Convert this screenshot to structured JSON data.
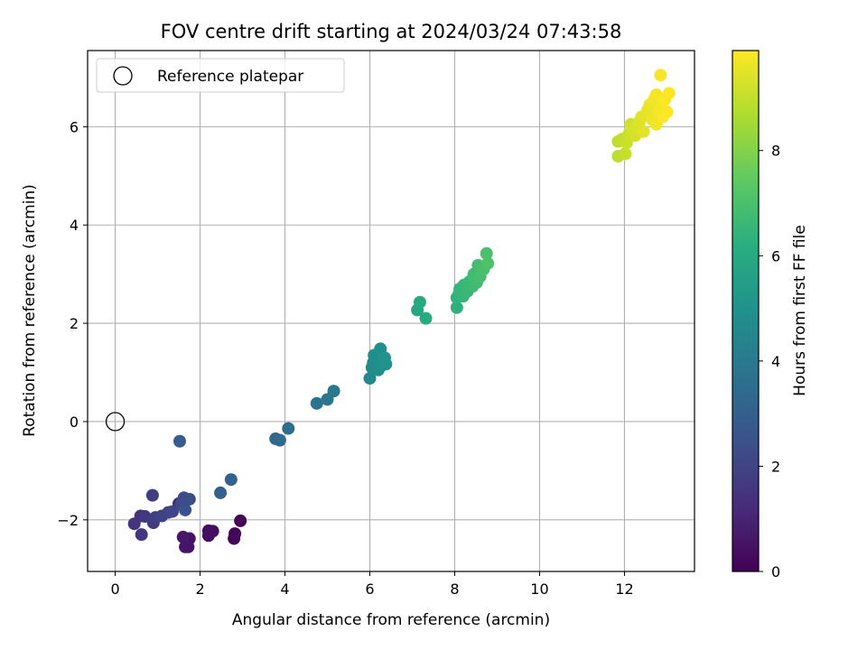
{
  "chart_data": {
    "type": "scatter",
    "title": "FOV centre drift starting at 2024/03/24 07:43:58",
    "xlabel": "Angular distance from reference (arcmin)",
    "ylabel": "Rotation from reference (arcmin)",
    "xlim": [
      -0.65,
      13.65
    ],
    "ylim": [
      -3.05,
      7.55
    ],
    "xticks": [
      0,
      2,
      4,
      6,
      8,
      10,
      12
    ],
    "yticks": [
      -2,
      0,
      2,
      4,
      6
    ],
    "grid": true,
    "legend": {
      "position": "top-left",
      "entries": [
        "Reference platepar"
      ]
    },
    "reference_point": {
      "x": 0,
      "y": 0,
      "label": "Reference platepar"
    },
    "colorbar": {
      "label": "Hours from first FF file",
      "colormap": "viridis",
      "range": [
        0,
        9.9
      ],
      "ticks": [
        0,
        2,
        4,
        6,
        8
      ]
    },
    "points": [
      {
        "x": 2.95,
        "y": -2.02,
        "h": 0.1
      },
      {
        "x": 2.8,
        "y": -2.38,
        "h": 0.15
      },
      {
        "x": 2.82,
        "y": -2.28,
        "h": 0.2
      },
      {
        "x": 2.3,
        "y": -2.23,
        "h": 0.3
      },
      {
        "x": 2.2,
        "y": -2.22,
        "h": 0.35
      },
      {
        "x": 2.2,
        "y": -2.32,
        "h": 0.4
      },
      {
        "x": 1.75,
        "y": -2.38,
        "h": 0.5
      },
      {
        "x": 1.72,
        "y": -2.55,
        "h": 0.55
      },
      {
        "x": 1.65,
        "y": -2.55,
        "h": 0.6
      },
      {
        "x": 1.6,
        "y": -2.35,
        "h": 0.65
      },
      {
        "x": 1.5,
        "y": -1.67,
        "h": 0.9
      },
      {
        "x": 0.6,
        "y": -1.92,
        "h": 1.4
      },
      {
        "x": 0.45,
        "y": -2.08,
        "h": 1.5
      },
      {
        "x": 0.62,
        "y": -2.3,
        "h": 1.55
      },
      {
        "x": 0.7,
        "y": -1.93,
        "h": 1.6
      },
      {
        "x": 0.9,
        "y": -2.06,
        "h": 1.7
      },
      {
        "x": 0.88,
        "y": -1.5,
        "h": 1.75
      },
      {
        "x": 0.95,
        "y": -1.95,
        "h": 1.85
      },
      {
        "x": 1.1,
        "y": -1.92,
        "h": 1.9
      },
      {
        "x": 1.25,
        "y": -1.85,
        "h": 2.0
      },
      {
        "x": 1.35,
        "y": -1.83,
        "h": 2.05
      },
      {
        "x": 1.55,
        "y": -1.67,
        "h": 2.2
      },
      {
        "x": 1.62,
        "y": -1.55,
        "h": 2.3
      },
      {
        "x": 1.75,
        "y": -1.58,
        "h": 2.35
      },
      {
        "x": 1.65,
        "y": -1.8,
        "h": 2.45
      },
      {
        "x": 1.52,
        "y": -0.4,
        "h": 2.9
      },
      {
        "x": 2.48,
        "y": -1.45,
        "h": 3.05
      },
      {
        "x": 2.73,
        "y": -1.18,
        "h": 3.15
      },
      {
        "x": 3.78,
        "y": -0.35,
        "h": 3.3
      },
      {
        "x": 3.88,
        "y": -0.38,
        "h": 3.4
      },
      {
        "x": 4.08,
        "y": -0.14,
        "h": 3.5
      },
      {
        "x": 4.75,
        "y": 0.37,
        "h": 3.75
      },
      {
        "x": 5.0,
        "y": 0.45,
        "h": 3.85
      },
      {
        "x": 5.15,
        "y": 0.62,
        "h": 3.95
      },
      {
        "x": 6.0,
        "y": 0.88,
        "h": 4.6
      },
      {
        "x": 6.05,
        "y": 1.1,
        "h": 4.65
      },
      {
        "x": 6.08,
        "y": 1.2,
        "h": 4.7
      },
      {
        "x": 6.1,
        "y": 1.35,
        "h": 4.75
      },
      {
        "x": 6.18,
        "y": 1.25,
        "h": 4.8
      },
      {
        "x": 6.2,
        "y": 1.05,
        "h": 4.85
      },
      {
        "x": 6.25,
        "y": 1.48,
        "h": 4.9
      },
      {
        "x": 6.3,
        "y": 1.15,
        "h": 4.95
      },
      {
        "x": 6.35,
        "y": 1.3,
        "h": 5.0
      },
      {
        "x": 6.38,
        "y": 1.17,
        "h": 5.05
      },
      {
        "x": 7.12,
        "y": 2.27,
        "h": 5.9
      },
      {
        "x": 7.18,
        "y": 2.43,
        "h": 5.95
      },
      {
        "x": 7.32,
        "y": 2.1,
        "h": 6.0
      },
      {
        "x": 8.05,
        "y": 2.32,
        "h": 6.3
      },
      {
        "x": 8.05,
        "y": 2.52,
        "h": 6.35
      },
      {
        "x": 8.1,
        "y": 2.6,
        "h": 6.4
      },
      {
        "x": 8.12,
        "y": 2.7,
        "h": 6.45
      },
      {
        "x": 8.2,
        "y": 2.55,
        "h": 6.5
      },
      {
        "x": 8.22,
        "y": 2.78,
        "h": 6.55
      },
      {
        "x": 8.3,
        "y": 2.65,
        "h": 6.6
      },
      {
        "x": 8.35,
        "y": 2.85,
        "h": 6.65
      },
      {
        "x": 8.42,
        "y": 2.75,
        "h": 6.7
      },
      {
        "x": 8.45,
        "y": 3.0,
        "h": 6.75
      },
      {
        "x": 8.52,
        "y": 2.83,
        "h": 6.8
      },
      {
        "x": 8.55,
        "y": 3.18,
        "h": 6.85
      },
      {
        "x": 8.6,
        "y": 2.95,
        "h": 6.9
      },
      {
        "x": 8.68,
        "y": 3.1,
        "h": 6.95
      },
      {
        "x": 8.75,
        "y": 3.42,
        "h": 7.0
      },
      {
        "x": 8.78,
        "y": 3.22,
        "h": 7.05
      },
      {
        "x": 11.85,
        "y": 5.4,
        "h": 8.9
      },
      {
        "x": 11.85,
        "y": 5.7,
        "h": 8.95
      },
      {
        "x": 11.95,
        "y": 5.75,
        "h": 9.0
      },
      {
        "x": 12.02,
        "y": 5.45,
        "h": 9.05
      },
      {
        "x": 12.05,
        "y": 5.67,
        "h": 9.1
      },
      {
        "x": 12.1,
        "y": 5.85,
        "h": 9.15
      },
      {
        "x": 12.15,
        "y": 6.05,
        "h": 9.2
      },
      {
        "x": 12.2,
        "y": 5.95,
        "h": 9.25
      },
      {
        "x": 12.25,
        "y": 5.82,
        "h": 9.3
      },
      {
        "x": 12.3,
        "y": 6.0,
        "h": 9.35
      },
      {
        "x": 12.35,
        "y": 6.1,
        "h": 9.4
      },
      {
        "x": 12.4,
        "y": 6.2,
        "h": 9.45
      },
      {
        "x": 12.45,
        "y": 5.9,
        "h": 9.5
      },
      {
        "x": 12.5,
        "y": 6.25,
        "h": 9.55
      },
      {
        "x": 12.55,
        "y": 6.35,
        "h": 9.6
      },
      {
        "x": 12.6,
        "y": 6.45,
        "h": 9.62
      },
      {
        "x": 12.65,
        "y": 6.15,
        "h": 9.65
      },
      {
        "x": 12.7,
        "y": 6.55,
        "h": 9.7
      },
      {
        "x": 12.75,
        "y": 6.05,
        "h": 9.72
      },
      {
        "x": 12.75,
        "y": 6.65,
        "h": 9.75
      },
      {
        "x": 12.8,
        "y": 6.3,
        "h": 9.78
      },
      {
        "x": 12.85,
        "y": 6.45,
        "h": 9.8
      },
      {
        "x": 12.85,
        "y": 7.05,
        "h": 9.82
      },
      {
        "x": 12.9,
        "y": 6.2,
        "h": 9.85
      },
      {
        "x": 12.95,
        "y": 6.55,
        "h": 9.87
      },
      {
        "x": 13.0,
        "y": 6.3,
        "h": 9.88
      },
      {
        "x": 13.05,
        "y": 6.68,
        "h": 9.9
      }
    ]
  }
}
